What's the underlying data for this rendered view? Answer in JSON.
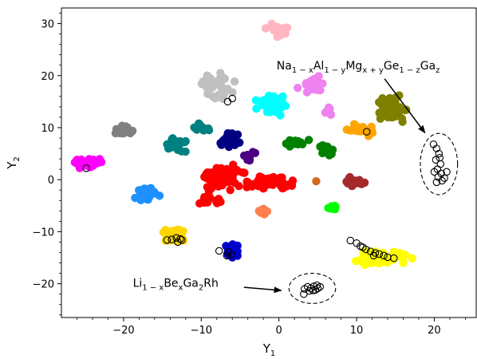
{
  "chart_data": {
    "type": "scatter",
    "xlabel": {
      "main": "Y",
      "sub": "1"
    },
    "ylabel": {
      "main": "Y",
      "sub": "2"
    },
    "xlim": [
      -28,
      25.5
    ],
    "ylim": [
      -26.5,
      33
    ],
    "xticks": [
      -20,
      -10,
      0,
      10,
      20
    ],
    "yticks": [
      -20,
      -10,
      0,
      10,
      20,
      30
    ],
    "xtick_labels": [
      "−20",
      "−10",
      "0",
      "10",
      "20"
    ],
    "ytick_labels": [
      "−20",
      "−10",
      "0",
      "10",
      "20",
      "30"
    ],
    "grid": false,
    "clusters": [
      {
        "color": "#ffb6c1",
        "center": [
          0,
          28.5
        ],
        "spread": [
          1.3,
          1.3
        ],
        "count": 30
      },
      {
        "color": "#c0c0c0",
        "center": [
          -8,
          18
        ],
        "spread": [
          2.0,
          2.3
        ],
        "count": 34
      },
      {
        "color": "#00ffff",
        "center": [
          -1,
          14.5
        ],
        "spread": [
          1.8,
          1.7
        ],
        "count": 42
      },
      {
        "color": "#ee82ee",
        "center": [
          4.5,
          18.3
        ],
        "spread": [
          1.6,
          1.3
        ],
        "count": 28
      },
      {
        "color": "#ee82ee",
        "center": [
          6.3,
          13
        ],
        "spread": [
          0.6,
          0.8
        ],
        "count": 8
      },
      {
        "color": "#808000",
        "center": [
          14.5,
          13.5
        ],
        "spread": [
          1.8,
          2.2
        ],
        "count": 44
      },
      {
        "color": "#ffa500",
        "center": [
          11,
          9.5
        ],
        "spread": [
          1.8,
          0.9
        ],
        "count": 20
      },
      {
        "color": "#808080",
        "center": [
          -20,
          9.5
        ],
        "spread": [
          1.3,
          0.8
        ],
        "count": 26
      },
      {
        "color": "#008080",
        "center": [
          -10,
          10
        ],
        "spread": [
          1.2,
          0.7
        ],
        "count": 14
      },
      {
        "color": "#008080",
        "center": [
          -13.3,
          6.8
        ],
        "spread": [
          1.2,
          1.4
        ],
        "count": 26
      },
      {
        "color": "#000080",
        "center": [
          -6.5,
          7.5
        ],
        "spread": [
          1.6,
          1.3
        ],
        "count": 18
      },
      {
        "color": "#4b0082",
        "center": [
          -4,
          4.5
        ],
        "spread": [
          1.0,
          1.3
        ],
        "count": 10
      },
      {
        "color": "#008000",
        "center": [
          2,
          7
        ],
        "spread": [
          1.5,
          0.8
        ],
        "count": 16
      },
      {
        "color": "#008000",
        "center": [
          6,
          5.5
        ],
        "spread": [
          1.0,
          1.1
        ],
        "count": 14
      },
      {
        "color": "#ff00ff",
        "center": [
          -24.5,
          3
        ],
        "spread": [
          1.8,
          1.2
        ],
        "count": 32
      },
      {
        "color": "#1e90ff",
        "center": [
          -17,
          -2.8
        ],
        "spread": [
          1.3,
          1.2
        ],
        "count": 30
      },
      {
        "color": "#ff0000",
        "center": [
          -7.5,
          0.5
        ],
        "spread": [
          3.0,
          2.4
        ],
        "count": 60
      },
      {
        "color": "#ff0000",
        "center": [
          -1,
          -0.5
        ],
        "spread": [
          2.5,
          1.4
        ],
        "count": 45
      },
      {
        "color": "#ff0000",
        "center": [
          -9,
          -4
        ],
        "spread": [
          1.5,
          0.9
        ],
        "count": 12
      },
      {
        "color": "#ff7f50",
        "center": [
          -2,
          -6
        ],
        "spread": [
          0.7,
          0.7
        ],
        "count": 10
      },
      {
        "color": "#d2691e",
        "center": [
          4.8,
          -0.3
        ],
        "spread": [
          0.3,
          0.3
        ],
        "count": 1
      },
      {
        "color": "#a52a2a",
        "center": [
          9.8,
          -0.5
        ],
        "spread": [
          1.1,
          1.1
        ],
        "count": 20
      },
      {
        "color": "#00ff00",
        "center": [
          7,
          -5.3
        ],
        "spread": [
          0.7,
          0.5
        ],
        "count": 12
      },
      {
        "color": "#ffd700",
        "center": [
          -13.5,
          -10.8
        ],
        "spread": [
          1.6,
          1.6
        ],
        "count": 40
      },
      {
        "color": "#0000cd",
        "center": [
          -6,
          -14
        ],
        "spread": [
          0.8,
          1.6
        ],
        "count": 24
      },
      {
        "color": "#ffff00",
        "center": [
          13,
          -15
        ],
        "spread": [
          3.2,
          1.5
        ],
        "count": 50
      }
    ],
    "open_markers": [
      [
        -24.8,
        2.2
      ],
      [
        -6.6,
        15.0
      ],
      [
        -6.0,
        15.6
      ],
      [
        11.3,
        9.2
      ],
      [
        -13.8,
        -11.5
      ],
      [
        -13.2,
        -11.2
      ],
      [
        -12.7,
        -11.4
      ],
      [
        -14.4,
        -11.6
      ],
      [
        -13.0,
        -12.0
      ],
      [
        -12.5,
        -11.6
      ],
      [
        -7.7,
        -13.7
      ],
      [
        -6.7,
        -14.6
      ],
      [
        -6.1,
        -14.4
      ],
      [
        -6.5,
        -13.9
      ],
      [
        9.2,
        -11.7
      ],
      [
        10.0,
        -12.2
      ],
      [
        10.5,
        -12.8
      ],
      [
        11.2,
        -13.4
      ],
      [
        11.8,
        -13.8
      ],
      [
        12.4,
        -14.1
      ],
      [
        12.9,
        -14.3
      ],
      [
        13.5,
        -14.6
      ],
      [
        14.0,
        -14.9
      ],
      [
        14.8,
        -15.1
      ],
      [
        12.2,
        -14.6
      ],
      [
        10.8,
        -13.0
      ],
      [
        3.3,
        -21.0
      ],
      [
        3.7,
        -20.6
      ],
      [
        4.1,
        -20.9
      ],
      [
        4.5,
        -20.5
      ],
      [
        4.9,
        -20.3
      ],
      [
        5.3,
        -20.6
      ],
      [
        3.2,
        -22.0
      ],
      [
        3.9,
        -21.4
      ],
      [
        4.4,
        -21.3
      ],
      [
        5.0,
        -20.9
      ],
      [
        4.7,
        -21.2
      ],
      [
        19.9,
        6.8
      ],
      [
        20.3,
        6.0
      ],
      [
        20.6,
        5.0
      ],
      [
        20.2,
        3.8
      ],
      [
        20.8,
        3.0
      ],
      [
        20.4,
        2.0
      ],
      [
        20.9,
        1.2
      ],
      [
        20.5,
        0.5
      ],
      [
        21.0,
        -0.2
      ],
      [
        20.3,
        -0.5
      ],
      [
        21.3,
        0.3
      ],
      [
        20.0,
        1.5
      ],
      [
        21.6,
        1.5
      ],
      [
        20.7,
        4.2
      ]
    ],
    "highlight_ellipses": [
      {
        "center": [
          20.6,
          3.0
        ],
        "radii": [
          2.4,
          5.9
        ]
      },
      {
        "center": [
          4.3,
          -20.9
        ],
        "radii": [
          3.0,
          2.9
        ]
      }
    ],
    "annotations": [
      {
        "parts": [
          {
            "t": "Na"
          },
          {
            "t": "1 − x",
            "sub": true
          },
          {
            "t": "Al"
          },
          {
            "t": "1 − y",
            "sub": true
          },
          {
            "t": "Mg"
          },
          {
            "t": "x + y",
            "sub": true
          },
          {
            "t": "Ge"
          },
          {
            "t": "1 − z",
            "sub": true
          },
          {
            "t": "Ga"
          },
          {
            "t": "z",
            "sub": true
          }
        ],
        "text_at": [
          -0.3,
          21.2
        ],
        "arrow_from": [
          13.6,
          19.4
        ],
        "arrow_to": [
          18.8,
          9.0
        ]
      },
      {
        "parts": [
          {
            "t": "Li"
          },
          {
            "t": "1 − x",
            "sub": true
          },
          {
            "t": "Be"
          },
          {
            "t": "x",
            "sub": true
          },
          {
            "t": "Ga"
          },
          {
            "t": "2",
            "sub": true
          },
          {
            "t": "Rh"
          }
        ],
        "text_at": [
          -18.8,
          -20.6
        ],
        "arrow_from": [
          -4.5,
          -20.7
        ],
        "arrow_to": [
          0.3,
          -21.3
        ]
      }
    ]
  }
}
